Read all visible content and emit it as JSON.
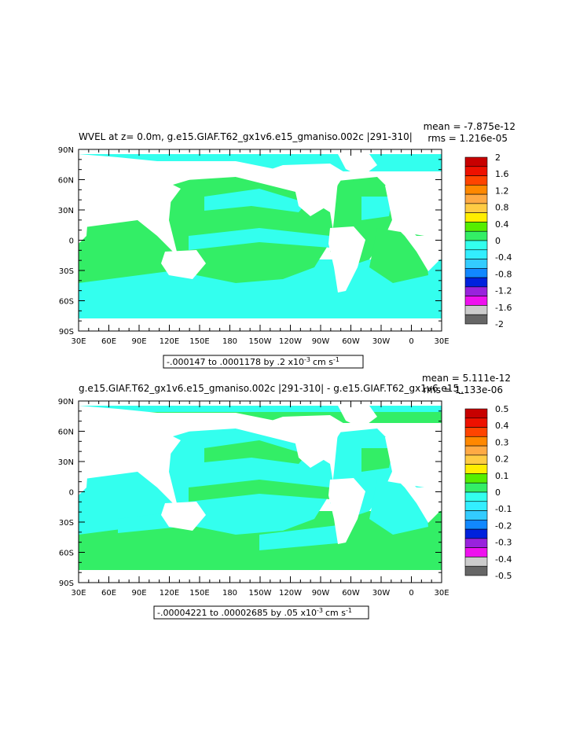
{
  "colors": {
    "land": "#ffffff",
    "green": "#33ee66",
    "cyan": "#33ffee",
    "frame": "#000000"
  },
  "panels": [
    {
      "title": "WVEL at z=    0.0m, g.e15.GIAF.T62_gx1v6.e15_gmaniso.002c |291-310|",
      "mean_text": "mean = -7.875e-12",
      "rms_text": "rms = 1.216e-05",
      "range_text": "-.000147 to .0001178 by .2 x10",
      "range_exp": "-3",
      "range_units": "cm s",
      "range_units_exp": "-1",
      "lat_labels": [
        "90N",
        "60N",
        "30N",
        "0",
        "30S",
        "60S",
        "90S"
      ],
      "lon_labels": [
        "30E",
        "60E",
        "90E",
        "120E",
        "150E",
        "180",
        "150W",
        "120W",
        "90W",
        "60W",
        "30W",
        "0",
        "30E"
      ],
      "colorbar": {
        "labels": [
          "2",
          "1.6",
          "1.2",
          "0.8",
          "0.4",
          "0",
          "-0.4",
          "-0.8",
          "-1.2",
          "-1.6",
          "-2"
        ],
        "colors": [
          "#c80000",
          "#ee1100",
          "#ff4400",
          "#ff8800",
          "#ffaa44",
          "#ffcc44",
          "#ffee00",
          "#55ee00",
          "#33ee66",
          "#33ffee",
          "#33eeff",
          "#33ccff",
          "#1188ff",
          "#0022dd",
          "#9922dd",
          "#ee11ee",
          "#cccccc",
          "#666666"
        ]
      }
    },
    {
      "title": "g.e15.GIAF.T62_gx1v6.e15_gmaniso.002c |291-310| - g.e15.GIAF.T62_gx1v6.e15_",
      "mean_text": "mean = 5.111e-12",
      "rms_text": "rms = 1.133e-06",
      "range_text": "-.00004221 to .00002685 by .05 x10",
      "range_exp": "-3",
      "range_units": "cm s",
      "range_units_exp": "-1",
      "lat_labels": [
        "90N",
        "60N",
        "30N",
        "0",
        "30S",
        "60S",
        "90S"
      ],
      "lon_labels": [
        "30E",
        "60E",
        "90E",
        "120E",
        "150E",
        "180",
        "150W",
        "120W",
        "90W",
        "60W",
        "30W",
        "0",
        "30E"
      ],
      "colorbar": {
        "labels": [
          "0.5",
          "0.4",
          "0.3",
          "0.2",
          "0.1",
          "0",
          "-0.1",
          "-0.2",
          "-0.3",
          "-0.4",
          "-0.5"
        ],
        "colors": [
          "#c80000",
          "#ee1100",
          "#ff4400",
          "#ff8800",
          "#ffaa44",
          "#ffcc44",
          "#ffee00",
          "#55ee00",
          "#33ee66",
          "#33ffee",
          "#33eeff",
          "#33ccff",
          "#1188ff",
          "#0022dd",
          "#9922dd",
          "#ee11ee",
          "#cccccc",
          "#666666"
        ]
      }
    }
  ]
}
